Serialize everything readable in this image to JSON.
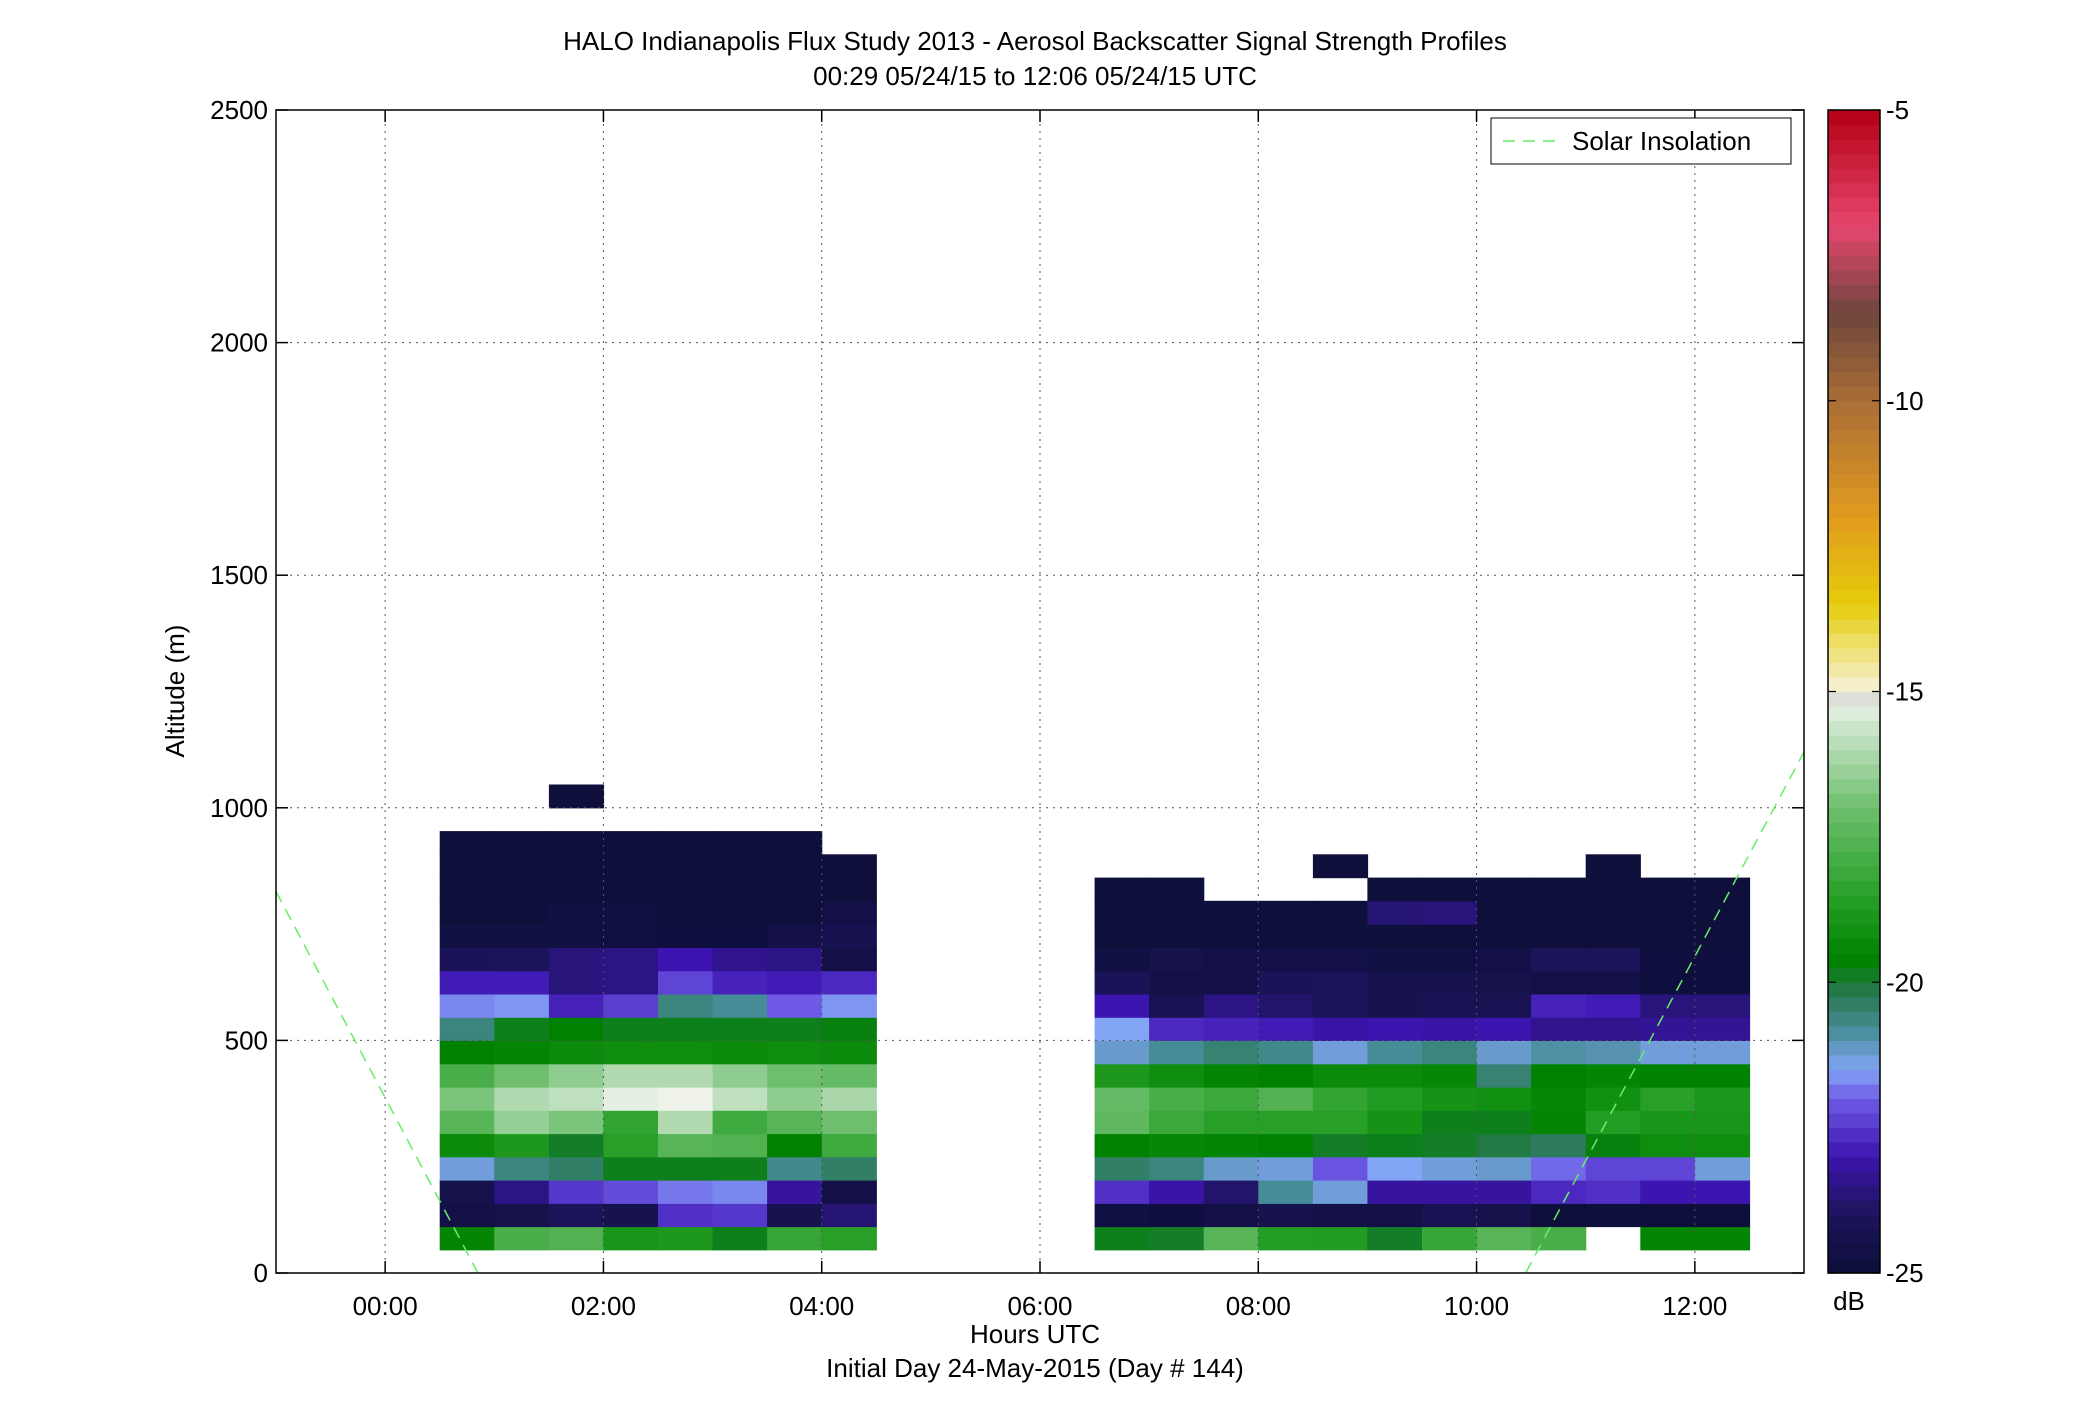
{
  "chart_data": {
    "type": "heatmap",
    "title": "HALO Indianapolis Flux Study 2013 - Aerosol Backscatter Signal Strength Profiles",
    "subtitle": "00:29 05/24/15 to 12:06 05/24/15  UTC",
    "xlabel": "Hours UTC",
    "xlabel2": "Initial Day 24-May-2015 (Day # 144)",
    "ylabel": "Altitude (m)",
    "xlim": [
      -1.0,
      13.0
    ],
    "ylim": [
      0,
      2500
    ],
    "x_ticks": [
      0,
      2,
      4,
      6,
      8,
      10,
      12
    ],
    "x_tick_labels": [
      "00:00",
      "02:00",
      "04:00",
      "06:00",
      "08:00",
      "10:00",
      "12:00"
    ],
    "y_ticks": [
      0,
      500,
      1000,
      1500,
      2000,
      2500
    ],
    "y_tick_labels": [
      "0",
      "500",
      "1000",
      "1500",
      "2000",
      "2500"
    ],
    "grid": true,
    "legend": {
      "position": "top-right",
      "entries": [
        {
          "label": "Solar Insolation",
          "color": "#66ee66",
          "style": "dashed"
        }
      ]
    },
    "colorbar": {
      "label": "dB",
      "range": [
        -25,
        -5
      ],
      "ticks": [
        -5,
        -10,
        -15,
        -20,
        -25
      ],
      "tick_labels": [
        "-5",
        "-10",
        "-15",
        "-20",
        "-25"
      ]
    },
    "time_bins_hours": [
      0.5,
      1.0,
      1.5,
      2.0,
      2.5,
      3.0,
      3.5,
      4.0,
      6.5,
      7.0,
      7.5,
      8.0,
      8.5,
      9.0,
      9.5,
      10.0,
      10.5,
      11.0,
      11.5,
      12.0
    ],
    "altitude_bins_m": [
      50,
      100,
      150,
      200,
      250,
      300,
      350,
      400,
      450,
      500,
      550,
      600,
      650,
      700,
      750,
      800,
      850,
      900,
      1000
    ],
    "bin_width_hours": 0.5,
    "bin_height_m": 50,
    "values_db": [
      [
        -19.5,
        -17.8,
        -17.6,
        -18.9,
        -18.8,
        -19.8,
        -18.2,
        -18.5,
        -19.8,
        -19.9,
        -17.5,
        -18.6,
        -18.7,
        -19.9,
        -18.2,
        -17.5,
        -17.8,
        null,
        -19.5,
        -19.5
      ],
      [
        -24.6,
        -24.4,
        -24.0,
        -24.3,
        -22.6,
        -22.5,
        -24.3,
        -23.7,
        -24.7,
        -24.8,
        -24.6,
        -24.3,
        -24.5,
        -24.5,
        -24.2,
        -24.4,
        -24.9,
        -24.9,
        -24.9,
        -24.9
      ],
      [
        -24.4,
        -23.5,
        -22.5,
        -22.2,
        -21.8,
        -21.7,
        -23.2,
        -24.6,
        -22.6,
        -23.1,
        -23.8,
        -20.8,
        -21.3,
        -23.2,
        -23.2,
        -23.2,
        -22.7,
        -22.6,
        -23.0,
        -23.0
      ],
      [
        -21.3,
        -20.6,
        -20.4,
        -19.8,
        -19.8,
        -19.8,
        -20.7,
        -20.4,
        -20.4,
        -20.6,
        -21.2,
        -21.3,
        -22.1,
        -21.5,
        -21.3,
        -21.2,
        -21.9,
        -22.3,
        -22.3,
        -21.3
      ],
      [
        -19.3,
        -18.8,
        -19.9,
        -18.5,
        -17.5,
        -17.6,
        -19.6,
        -18.0,
        -19.6,
        -19.4,
        -19.5,
        -19.6,
        -19.9,
        -19.8,
        -19.9,
        -20.1,
        -20.3,
        -19.7,
        -19.2,
        -19.2
      ],
      [
        -17.5,
        -16.4,
        -16.8,
        -18.3,
        -16.0,
        -18.0,
        -17.5,
        -17.0,
        -17.3,
        -18.1,
        -18.5,
        -18.5,
        -18.5,
        -19.0,
        -19.8,
        -19.8,
        -19.5,
        -18.6,
        -18.9,
        -18.9
      ],
      [
        -16.8,
        -16.0,
        -15.8,
        -15.3,
        -15.2,
        -15.8,
        -16.5,
        -16.1,
        -17.2,
        -17.8,
        -18.1,
        -17.6,
        -18.3,
        -18.7,
        -19.0,
        -19.1,
        -19.4,
        -19.1,
        -18.5,
        -18.8
      ],
      [
        -17.8,
        -17.0,
        -16.5,
        -16.0,
        -16.0,
        -16.5,
        -17.0,
        -17.2,
        -18.8,
        -19.2,
        -19.5,
        -19.6,
        -19.3,
        -19.3,
        -19.4,
        -20.5,
        -19.6,
        -19.5,
        -19.6,
        -19.6
      ],
      [
        -19.6,
        -19.5,
        -19.3,
        -19.2,
        -19.2,
        -19.3,
        -19.2,
        -19.3,
        -21.2,
        -20.8,
        -20.5,
        -20.7,
        -21.3,
        -20.8,
        -20.6,
        -21.2,
        -20.9,
        -21.0,
        -21.3,
        -21.3
      ],
      [
        -20.6,
        -19.8,
        -19.6,
        -19.8,
        -19.8,
        -19.8,
        -19.8,
        -19.7,
        -21.5,
        -22.7,
        -22.8,
        -22.9,
        -23.1,
        -23.0,
        -23.1,
        -23.0,
        -23.4,
        -23.4,
        -23.3,
        -23.3
      ],
      [
        -21.7,
        -21.6,
        -22.8,
        -22.4,
        -20.6,
        -20.8,
        -22.0,
        -21.6,
        -23.0,
        -24.2,
        -23.5,
        -23.8,
        -24.0,
        -24.3,
        -24.2,
        -24.2,
        -22.8,
        -22.9,
        -23.6,
        -23.6
      ],
      [
        -22.9,
        -22.9,
        -23.6,
        -23.5,
        -22.3,
        -22.8,
        -22.9,
        -22.7,
        -24.1,
        -24.5,
        -24.5,
        -24.1,
        -24.0,
        -24.3,
        -24.3,
        -24.4,
        -24.5,
        -24.6,
        -24.8,
        -24.8
      ],
      [
        -24.1,
        -24.0,
        -23.6,
        -23.5,
        -23.0,
        -23.4,
        -23.5,
        -24.6,
        -24.7,
        -24.4,
        -24.5,
        -24.6,
        -24.6,
        -24.7,
        -24.7,
        -24.6,
        -24.0,
        -24.0,
        -24.8,
        -24.8
      ],
      [
        -24.7,
        -24.7,
        -24.7,
        -24.7,
        -24.8,
        -24.8,
        -24.5,
        -24.3,
        -24.9,
        -24.9,
        -24.9,
        -24.9,
        -24.9,
        -24.9,
        -24.9,
        -24.9,
        -24.9,
        -24.9,
        -24.9,
        -24.9
      ],
      [
        -24.9,
        -24.9,
        -24.7,
        -24.7,
        -24.9,
        -24.9,
        -24.9,
        -24.6,
        -24.9,
        -24.9,
        -24.9,
        -24.9,
        -24.9,
        -23.7,
        -23.6,
        -24.9,
        -24.9,
        -24.9,
        -24.9,
        -24.9
      ],
      [
        -24.9,
        -24.9,
        -24.9,
        -24.9,
        -24.9,
        -24.9,
        -24.9,
        -24.9,
        -24.9,
        -24.9,
        null,
        null,
        null,
        -24.9,
        -24.9,
        -24.9,
        -24.9,
        -24.9,
        -24.9,
        -24.9
      ],
      [
        -24.9,
        -24.9,
        -24.9,
        -24.9,
        -24.9,
        -24.9,
        -24.9,
        -24.9,
        null,
        null,
        null,
        null,
        -24.9,
        null,
        null,
        null,
        null,
        -24.9,
        null,
        null
      ],
      [
        -24.9,
        -24.9,
        -24.9,
        -24.9,
        -24.9,
        -24.9,
        -24.9,
        null,
        null,
        null,
        null,
        null,
        null,
        null,
        null,
        null,
        null,
        null,
        null,
        null
      ],
      [
        null,
        null,
        -24.9,
        null,
        null,
        null,
        null,
        null,
        null,
        null,
        null,
        null,
        null,
        null,
        null,
        null,
        null,
        null,
        null,
        null
      ]
    ],
    "solar_insolation_line": [
      {
        "x": [
          -1.0,
          0.85
        ],
        "y": [
          820,
          0
        ]
      },
      {
        "x": [
          10.45,
          13.0
        ],
        "y": [
          0,
          1120
        ]
      }
    ]
  }
}
